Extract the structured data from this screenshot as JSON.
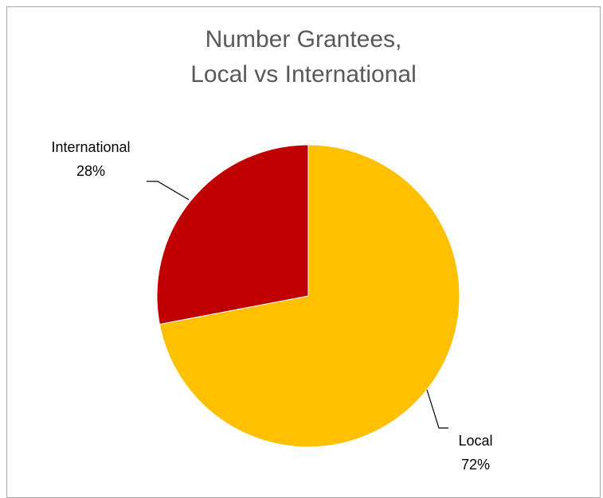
{
  "chart_data": {
    "type": "pie",
    "title": [
      "Number Grantees,",
      "Local vs International"
    ],
    "categories": [
      "Local",
      "International"
    ],
    "values": [
      72,
      28
    ],
    "value_labels": [
      "72%",
      "28%"
    ],
    "colors": [
      "#FFC000",
      "#C00000"
    ],
    "legend": "none",
    "data_labels": "outside-with-leader-lines"
  }
}
